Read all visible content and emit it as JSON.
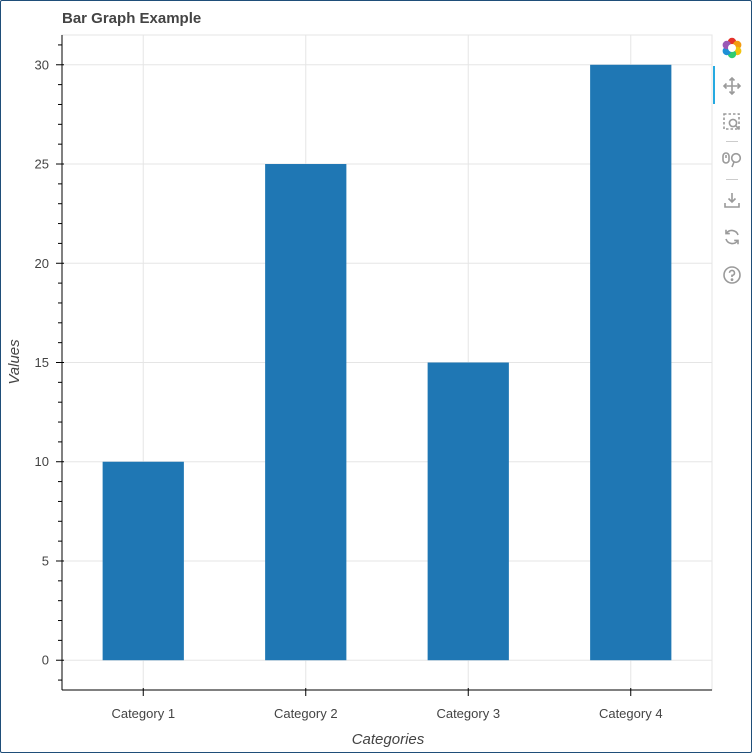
{
  "chart_data": {
    "type": "bar",
    "title": "Bar Graph Example",
    "xlabel": "Categories",
    "ylabel": "Values",
    "categories": [
      "Category 1",
      "Category 2",
      "Category 3",
      "Category 4"
    ],
    "values": [
      10,
      25,
      15,
      30
    ],
    "ylim": [
      -1.5,
      31.5
    ],
    "yticks": [
      0,
      5,
      10,
      15,
      20,
      25,
      30
    ],
    "grid": true,
    "bar_color": "#1f77b4"
  },
  "toolbar": {
    "tools": [
      {
        "name": "bokeh-logo-icon"
      },
      {
        "name": "pan-icon"
      },
      {
        "name": "box-zoom-icon"
      },
      {
        "name": "wheel-zoom-icon"
      },
      {
        "name": "save-icon"
      },
      {
        "name": "reset-icon"
      },
      {
        "name": "help-icon"
      }
    ]
  }
}
